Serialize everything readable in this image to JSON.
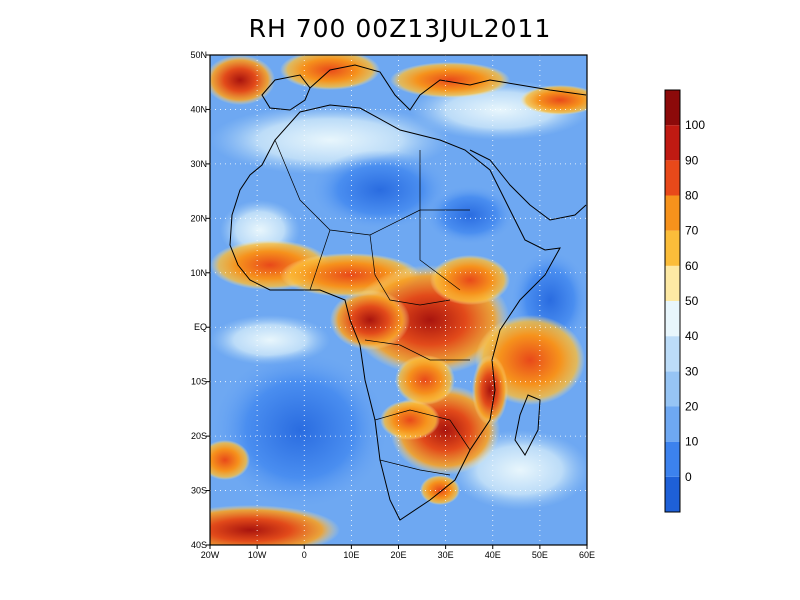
{
  "title": "RH 700 00Z13JUL2011",
  "map": {
    "lat_ticks": [
      {
        "value": 50,
        "label": "50N"
      },
      {
        "value": 40,
        "label": "40N"
      },
      {
        "value": 30,
        "label": "30N"
      },
      {
        "value": 20,
        "label": "20N"
      },
      {
        "value": 10,
        "label": "10N"
      },
      {
        "value": 0,
        "label": "EQ"
      },
      {
        "value": -10,
        "label": "10S"
      },
      {
        "value": -20,
        "label": "20S"
      },
      {
        "value": -30,
        "label": "30S"
      },
      {
        "value": -40,
        "label": "40S"
      }
    ],
    "lon_ticks": [
      {
        "value": -20,
        "label": "20W"
      },
      {
        "value": -10,
        "label": "10W"
      },
      {
        "value": 0,
        "label": "0"
      },
      {
        "value": 10,
        "label": "10E"
      },
      {
        "value": 20,
        "label": "20E"
      },
      {
        "value": 30,
        "label": "30E"
      },
      {
        "value": 40,
        "label": "40E"
      },
      {
        "value": 50,
        "label": "50E"
      },
      {
        "value": 60,
        "label": "60E"
      }
    ],
    "lon_range": [
      -20,
      60
    ],
    "lat_range": [
      -40,
      50
    ]
  },
  "colorbar": {
    "bins": [
      {
        "color": "#1e60d8",
        "label": "0"
      },
      {
        "color": "#3c82ee",
        "label": "10"
      },
      {
        "color": "#6ea8f2",
        "label": "20"
      },
      {
        "color": "#96c4f4",
        "label": "30"
      },
      {
        "color": "#bcdcf8",
        "label": "40"
      },
      {
        "color": "#e8f6fc",
        "label": "50"
      },
      {
        "color": "#fde9a4",
        "label": "60"
      },
      {
        "color": "#fbbd3a",
        "label": "70"
      },
      {
        "color": "#f6921c",
        "label": "80"
      },
      {
        "color": "#e8491a",
        "label": "90"
      },
      {
        "color": "#c01a12",
        "label": "100"
      },
      {
        "color": "#8c0a0a",
        "label": ""
      }
    ]
  }
}
